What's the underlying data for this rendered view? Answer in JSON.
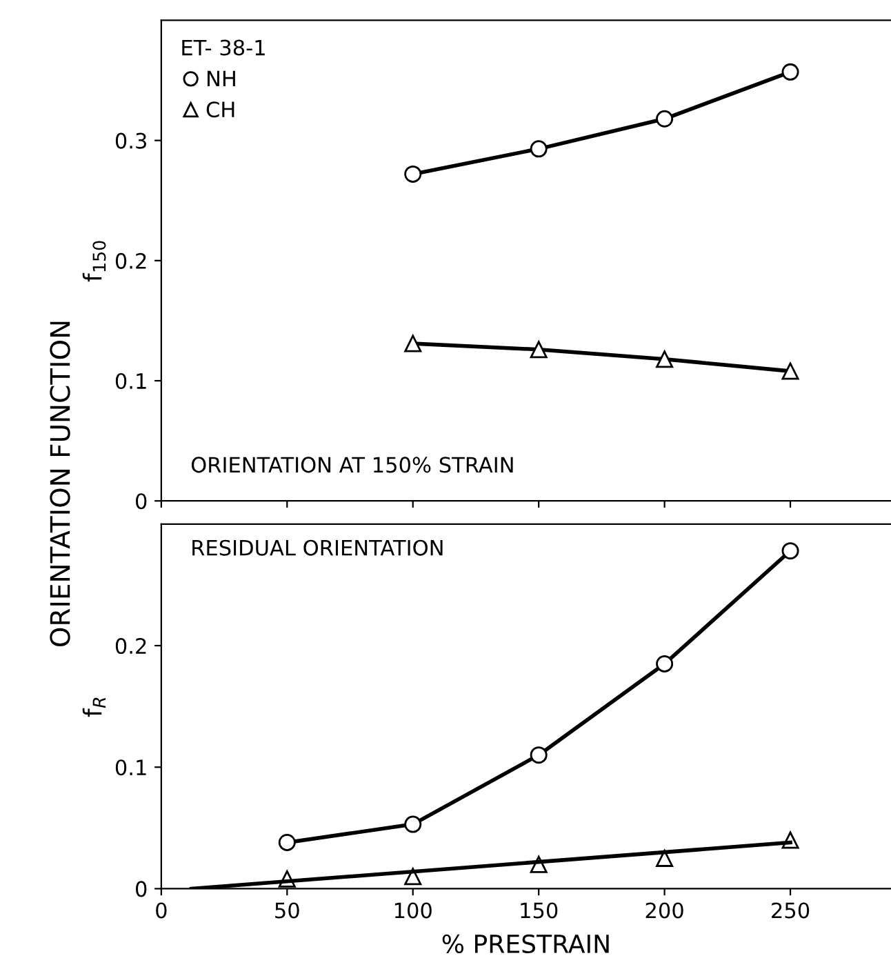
{
  "chart_data": [
    {
      "type": "line",
      "ylabel": "f$_{150}$",
      "legend_title": "ET- 38-1",
      "legend": "top left",
      "tick_labels": "y",
      "grid": false,
      "annotations": [
        "ORIENTATION AT 150% STRAIN",
        "ORIENTATION FUNCTION"
      ],
      "x": [
        100,
        150,
        200,
        250
      ],
      "xlim": [
        0,
        290
      ],
      "xticks": [
        0,
        50,
        100,
        150,
        200,
        250
      ],
      "ylim": [
        0,
        0.4
      ],
      "yticks": [
        0,
        0.1,
        0.2,
        0.3
      ],
      "series": [
        {
          "name": "NH",
          "color": "#000000",
          "marker": "circle",
          "values": [
            0.272,
            0.293,
            0.318,
            0.357
          ]
        },
        {
          "name": "CH",
          "color": "#000000",
          "marker": "triangle",
          "values": [
            0.131,
            0.126,
            0.118,
            0.108
          ]
        }
      ]
    },
    {
      "type": "line",
      "ylabel": "f$_{R}$",
      "xlabel": "% PRESTRAIN",
      "grid": false,
      "annotations": [
        "RESIDUAL ORIENTATION"
      ],
      "x": [
        50,
        100,
        150,
        200,
        250
      ],
      "xlim": [
        0,
        290
      ],
      "xticks": [
        0,
        50,
        100,
        150,
        200,
        250
      ],
      "ylim": [
        0,
        0.3
      ],
      "yticks": [
        0,
        0.1,
        0.2
      ],
      "series": [
        {
          "color": "#000000",
          "marker": "circle",
          "values": [
            0.038,
            0.053,
            0.11,
            0.185,
            0.278
          ]
        },
        {
          "color": "#000000",
          "marker": "triangle",
          "type": "scatter",
          "values": [
            0.008,
            0.01,
            0.02,
            0.025,
            0.04
          ]
        },
        {
          "color": "#000000",
          "marker": "none",
          "x": [
            12,
            250
          ],
          "values": [
            0,
            0.038
          ]
        }
      ]
    }
  ]
}
